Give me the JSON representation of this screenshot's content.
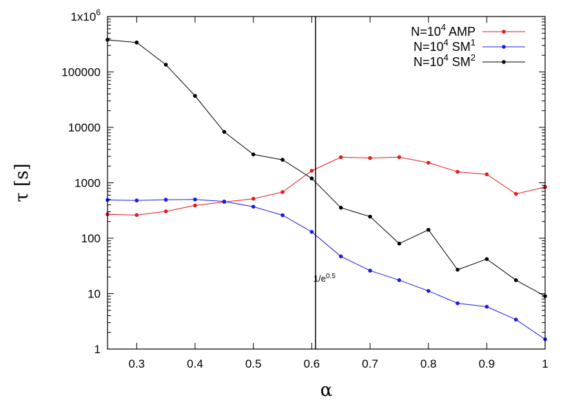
{
  "chart_data": {
    "type": "line",
    "xlabel": "α",
    "ylabel": "τ [s]",
    "x_scale": "linear",
    "y_scale": "log",
    "xlim": [
      0.25,
      1.0
    ],
    "ylim": [
      1,
      1000000
    ],
    "x_ticks": [
      {
        "value": 0.3,
        "label": "0.3"
      },
      {
        "value": 0.4,
        "label": "0.4"
      },
      {
        "value": 0.5,
        "label": "0.5"
      },
      {
        "value": 0.6,
        "label": "0.6"
      },
      {
        "value": 0.7,
        "label": "0.7"
      },
      {
        "value": 0.8,
        "label": "0.8"
      },
      {
        "value": 0.9,
        "label": "0.9"
      },
      {
        "value": 1.0,
        "label": "1"
      }
    ],
    "y_ticks": [
      {
        "value": 1,
        "label": "1"
      },
      {
        "value": 10,
        "label": "10"
      },
      {
        "value": 100,
        "label": "100"
      },
      {
        "value": 1000,
        "label": "1000"
      },
      {
        "value": 10000,
        "label": "10000"
      },
      {
        "value": 100000,
        "label": "100000"
      },
      {
        "value": 1000000,
        "label": "1x10",
        "sup": "6"
      }
    ],
    "grid": false,
    "legend_position": "top-right",
    "x": [
      0.25,
      0.3,
      0.35,
      0.4,
      0.45,
      0.5,
      0.55,
      0.6,
      0.65,
      0.7,
      0.75,
      0.8,
      0.85,
      0.9,
      0.95,
      1.0
    ],
    "series": [
      {
        "name": "N=10^4 AMP",
        "legend_base": "N=10",
        "legend_sup": "4",
        "legend_suffix": " AMP",
        "legend_suffix_sup": "",
        "color": "#e41a1c",
        "values": [
          270,
          262,
          305,
          390,
          450,
          515,
          680,
          1650,
          2900,
          2800,
          2900,
          2300,
          1580,
          1420,
          630,
          840
        ]
      },
      {
        "name": "N=10^4 SM^1",
        "legend_base": "N=10",
        "legend_sup": "4",
        "legend_suffix": " SM",
        "legend_suffix_sup": "1",
        "color": "#1a1ae4",
        "values": [
          490,
          480,
          495,
          500,
          460,
          370,
          260,
          130,
          47,
          26,
          17.5,
          11.2,
          6.7,
          5.8,
          3.4,
          1.5
        ]
      },
      {
        "name": "N=10^4 SM^2",
        "legend_base": "N=10",
        "legend_sup": "4",
        "legend_suffix": " SM",
        "legend_suffix_sup": "2",
        "color": "#000000",
        "values": [
          380000,
          340000,
          135000,
          37000,
          8300,
          3250,
          2600,
          1200,
          355,
          245,
          80,
          142,
          27,
          42,
          17.5,
          9
        ]
      }
    ],
    "annotations": [
      {
        "type": "vline",
        "x": 0.6065,
        "text_base": "1/e",
        "text_sup": "0.5"
      }
    ]
  }
}
